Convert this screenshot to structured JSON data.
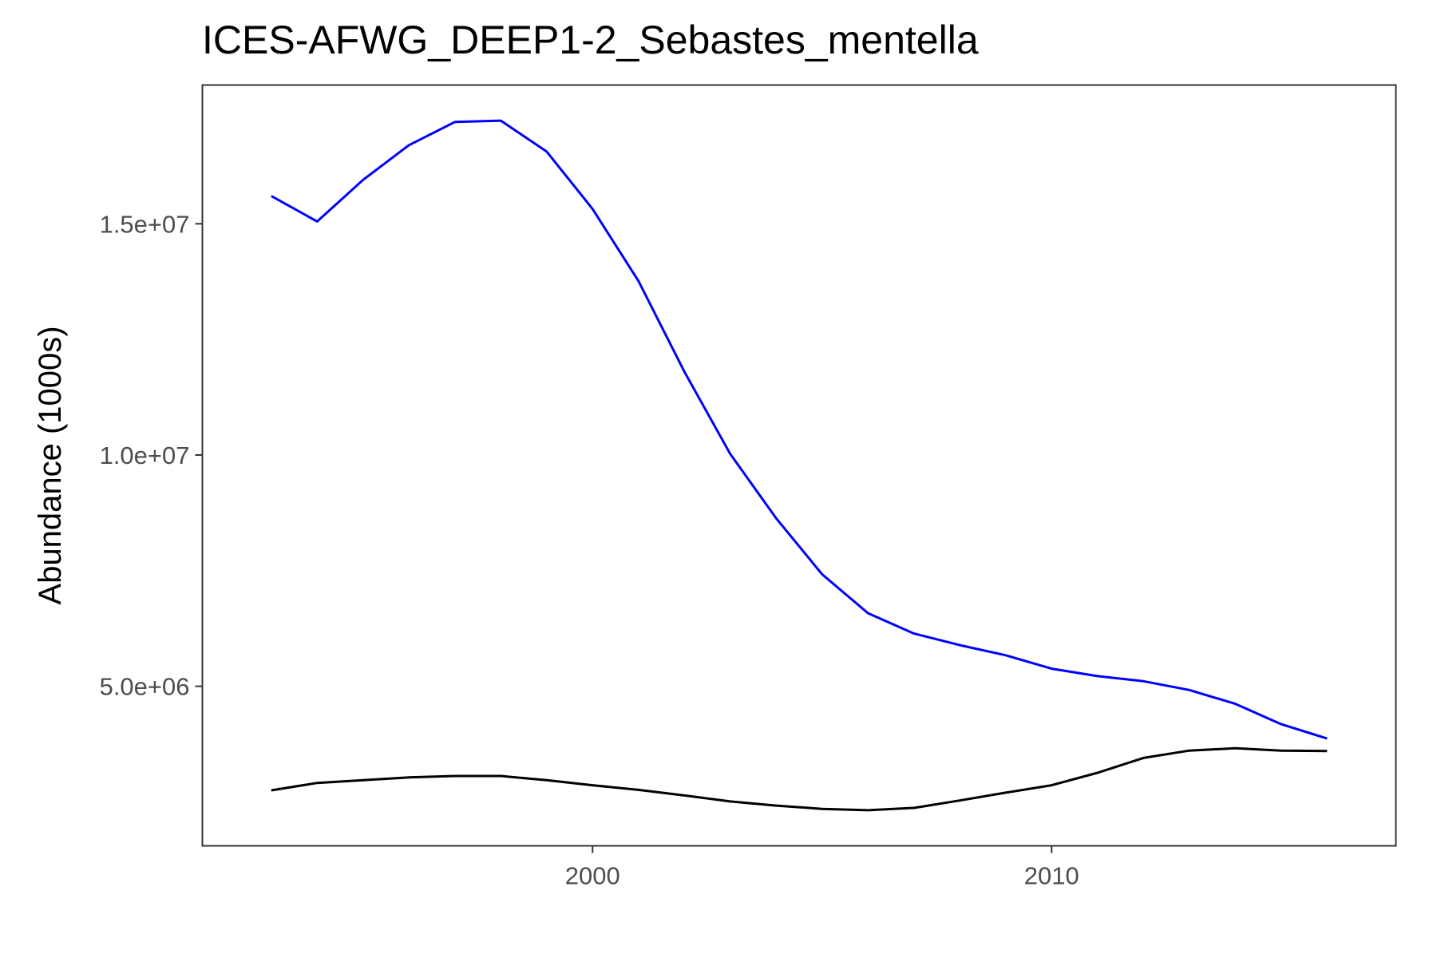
{
  "chart_data": {
    "type": "line",
    "title": "ICES-AFWG_DEEP1-2_Sebastes_mentella",
    "xlabel": "",
    "ylabel": "Abundance (1000s)",
    "xlim": [
      1991.5,
      2017.5
    ],
    "ylim": [
      1550000,
      18000000
    ],
    "x_ticks": [
      2000,
      2010
    ],
    "x_tick_labels": [
      "2000",
      "2010"
    ],
    "y_ticks": [
      5000000,
      10000000,
      15000000
    ],
    "y_tick_labels": [
      "5.0e+06",
      "1.0e+07",
      "1.5e+07"
    ],
    "grid": false,
    "legend": "none",
    "x": [
      1993,
      1994,
      1995,
      1996,
      1997,
      1998,
      1999,
      2000,
      2001,
      2002,
      2003,
      2004,
      2005,
      2006,
      2007,
      2008,
      2009,
      2010,
      2011,
      2012,
      2013,
      2014,
      2015,
      2016
    ],
    "series": [
      {
        "color": "#0000ff",
        "values": [
          15600000,
          15050000,
          15950000,
          16700000,
          17200000,
          17230000,
          16560000,
          15320000,
          13760000,
          11800000,
          10020000,
          8630000,
          7420000,
          6580000,
          6140000,
          5890000,
          5670000,
          5380000,
          5220000,
          5110000,
          4920000,
          4620000,
          4180000,
          3870000
        ]
      },
      {
        "color": "#000000",
        "values": [
          2750000,
          2910000,
          2970000,
          3030000,
          3060000,
          3060000,
          2970000,
          2860000,
          2760000,
          2640000,
          2510000,
          2420000,
          2350000,
          2320000,
          2370000,
          2530000,
          2700000,
          2860000,
          3130000,
          3450000,
          3610000,
          3660000,
          3610000,
          3600000
        ]
      }
    ]
  }
}
